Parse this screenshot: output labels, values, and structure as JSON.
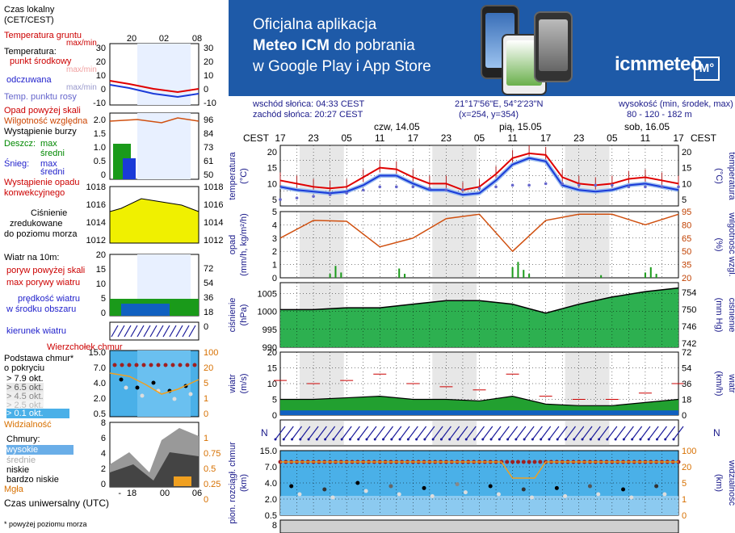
{
  "banner": {
    "line1": "Oficjalna aplikacja",
    "line2a": "Meteo ICM",
    "line2b": " do pobrania",
    "line3": "w Google Play i App Store",
    "brand": "icmmeteo",
    "brand_badge": "M°",
    "colors": {
      "bg": "#1e5aa8",
      "text": "#ffffff"
    }
  },
  "header": {
    "sunrise": "wschód słońca: 04:33 CEST",
    "sunset": "zachód słońca: 20:27 CEST",
    "coords": "21°17'56\"E, 54°2'23\"N",
    "grid": "(x=254,  y=354)",
    "height_label": "wysokość (min, środek, max)",
    "height_values": "80 - 120 - 182 m"
  },
  "legend": {
    "time_local": "Czas lokalny",
    "time_local2": "(CET/CEST)",
    "time_ticks": [
      "20",
      "02",
      "08"
    ],
    "temp_ground": "Temperatura gruntu",
    "temp_ground2": "max/min",
    "temp_title": "Temperatura:",
    "temp_mid": "punkt środkowy",
    "temp_maxmin": "max/min",
    "temp_feel": "odczuwana",
    "temp_feel2": "max/min",
    "temp_dew": "Temp. punktu rosy",
    "temp_axis": [
      "30",
      "20",
      "10",
      "0",
      "-10"
    ],
    "precip_over": "Opad powyżej skali",
    "humidity": "Wilgotność względna",
    "storm": "Wystąpienie burzy",
    "rain": "Deszcz:",
    "rain_max": "max",
    "rain_mid": "średni",
    "snow": "Śnieg:",
    "snow_max": "max",
    "snow_mid": "średni",
    "precip_occ": "Wystąpienie opadu",
    "precip_occ2": "konwekcyjnego",
    "precip_axis": [
      "2.0",
      "1.5",
      "1.0",
      "0.5",
      "0"
    ],
    "hum_axis": [
      "96",
      "84",
      "73",
      "61",
      "50"
    ],
    "pressure_title": "Ciśnienie",
    "pressure_2": "zredukowane",
    "pressure_3": "do poziomu morza",
    "pressure_axis": [
      "1018",
      "1016",
      "1014",
      "1012"
    ],
    "wind_title": "Wiatr na 10m:",
    "wind_gust_over": "poryw powyżej skali",
    "wind_gust_max": "max porywy wiatru",
    "wind_speed": "prędkość wiatru",
    "wind_speed2": "w środku obszaru",
    "wind_axis": [
      "20",
      "15",
      "10",
      "5",
      "0"
    ],
    "wind_axis_r": [
      "72",
      "54",
      "36",
      "18",
      "0"
    ],
    "wind_dir": "kierunek wiatru",
    "cloud_top": "Wierzchołek chmur",
    "cloud_base": "Podstawa chmur*",
    "cloud_base2": "o pokryciu",
    "okt": [
      "> 7.9 okt.",
      "> 6.5 okt.",
      "> 4.5 okt.",
      "> 2.5 okt.",
      "> 0.1 okt."
    ],
    "visibility": "Widzialność",
    "cloudbase_axis": [
      "15.0",
      "7.0",
      "4.0",
      "2.0",
      "0.5"
    ],
    "cloudbase_axis_r": [
      "100",
      "20",
      "5",
      "1",
      "0"
    ],
    "clouds": "Chmury:",
    "clouds_high": "wysokie",
    "clouds_mid": "średnie",
    "clouds_low": "niskie",
    "clouds_vlow": "bardzo niskie",
    "fog": "Mgła",
    "clouds_axis": [
      "8",
      "6",
      "4",
      "2",
      "0"
    ],
    "clouds_axis_r": [
      "1",
      "0.75",
      "0.5",
      "0.25",
      "0"
    ],
    "utc": "Czas uniwersalny (UTC)",
    "utc_ticks": [
      "18",
      "00",
      "06"
    ],
    "footnote": "* powyżej poziomu morza"
  },
  "main": {
    "cest": "CEST",
    "hour_ticks": [
      "17",
      "23",
      "05",
      "11",
      "17",
      "23",
      "05",
      "11",
      "17",
      "23",
      "05",
      "11",
      "17"
    ],
    "days": [
      "czw, 14.05",
      "pią, 15.05",
      "sob, 16.05"
    ],
    "temp_label": "temperatura",
    "temp_unit": "(°C)",
    "temp_axis": [
      "20",
      "15",
      "10",
      "5"
    ],
    "precip_label": "opad",
    "precip_unit": "(mm/h, kg/m²/h)",
    "precip_axis": [
      "5",
      "4",
      "3",
      "2",
      "1",
      "0"
    ],
    "hum_label": "wilgotność wzgl.",
    "hum_unit": "(%)",
    "hum_axis": [
      "95",
      "80",
      "65",
      "50",
      "35",
      "20"
    ],
    "pres_label": "ciśnienie",
    "pres_unit": "(hPa)",
    "pres_unit_r": "(mm Hg)",
    "pres_axis": [
      "1005",
      "1000",
      "995",
      "990"
    ],
    "pres_axis_r": [
      "754",
      "750",
      "746",
      "742"
    ],
    "wind_label": "wiatr",
    "wind_unit": "(m/s)",
    "wind_unit_r": "(km/h)",
    "wind_axis": [
      "20",
      "15",
      "10",
      "5",
      "0"
    ],
    "wind_axis_r": [
      "72",
      "54",
      "36",
      "18",
      "0"
    ],
    "cb_label": "pion. rozciągł. chmur",
    "cb_unit": "(km)",
    "vis_label": "widzialność",
    "vis_unit": "(km)",
    "cb_axis": [
      "15.0",
      "7.0",
      "4.0",
      "2.0",
      "0.5"
    ],
    "cb_axis_r": [
      "100",
      "20",
      "5",
      "1",
      "0"
    ],
    "bottom_tick": "8"
  },
  "chart_data": [
    {
      "type": "line",
      "title": "temperatura",
      "ylabel": "(°C)",
      "ylim": [
        3,
        22
      ],
      "x_hours_from_start": [
        0,
        3,
        6,
        9,
        12,
        15,
        18,
        21,
        24,
        27,
        30,
        33,
        36,
        39,
        42,
        45,
        48,
        51,
        54,
        57,
        60,
        63,
        66,
        69,
        72
      ],
      "series": [
        {
          "name": "max/min",
          "values": [
            11,
            10,
            9,
            8.5,
            9,
            12,
            15,
            14.5,
            12,
            10,
            10,
            8,
            9,
            13,
            18,
            19.5,
            19,
            12,
            10,
            9.5,
            10,
            11.5,
            12,
            11,
            10
          ]
        },
        {
          "name": "punkt środkowy",
          "values": [
            10.5,
            9.5,
            9,
            8,
            9,
            11,
            14,
            14,
            11.5,
            9.5,
            9.5,
            7.5,
            8.5,
            12,
            17,
            19,
            18,
            11,
            9.5,
            9,
            9.5,
            11,
            11.5,
            10.5,
            9.5
          ]
        },
        {
          "name": "odczuwana",
          "values": [
            9,
            8,
            7.5,
            7,
            7.5,
            9.5,
            12.5,
            12.5,
            10,
            8,
            8,
            6.5,
            7,
            11,
            16,
            18,
            17,
            9.5,
            8,
            7.5,
            8,
            9.5,
            10,
            9,
            8
          ]
        },
        {
          "name": "Temp. punktu rosy",
          "values": [
            5,
            5.5,
            6,
            6.5,
            7,
            8,
            9,
            9,
            9,
            8.5,
            8,
            8,
            8.5,
            9,
            9.5,
            9.5,
            10,
            10,
            9.5,
            9.5,
            9.5,
            9,
            9,
            9,
            9
          ]
        }
      ]
    },
    {
      "type": "line",
      "title": "wilgotność wzgl.",
      "ylabel": "(%)",
      "ylim": [
        20,
        95
      ],
      "x_hours_from_start": [
        0,
        6,
        12,
        18,
        24,
        30,
        36,
        42,
        48,
        54,
        60,
        66,
        72
      ],
      "series": [
        {
          "name": "Wilgotność względna",
          "values": [
            65,
            85,
            84,
            55,
            65,
            87,
            92,
            50,
            85,
            92,
            92,
            80,
            92
          ]
        }
      ]
    },
    {
      "type": "area",
      "title": "ciśnienie",
      "ylabel": "(hPa)",
      "ylim": [
        990,
        1008
      ],
      "x_hours_from_start": [
        0,
        6,
        12,
        18,
        24,
        30,
        36,
        42,
        48,
        54,
        60,
        66,
        72
      ],
      "series": [
        {
          "name": "Ciśnienie",
          "values": [
            1000.5,
            1000.5,
            1001,
            1001,
            1002,
            1003,
            1003,
            1002,
            999.5,
            1002,
            1004,
            1005.5,
            1006.5
          ]
        }
      ]
    },
    {
      "type": "area",
      "title": "wiatr",
      "ylabel": "(m/s)",
      "ylim": [
        0,
        20
      ],
      "x_hours_from_start": [
        0,
        6,
        12,
        18,
        24,
        30,
        36,
        42,
        48,
        54,
        60,
        66,
        72
      ],
      "series": [
        {
          "name": "prędkość wiatru",
          "values": [
            5,
            5,
            5.5,
            6,
            5,
            5,
            4.5,
            6,
            3.5,
            3,
            3,
            4,
            5
          ]
        },
        {
          "name": "max porywy wiatru",
          "values": [
            11,
            10,
            11,
            13,
            10,
            9,
            8,
            13,
            6,
            5,
            5,
            7,
            10
          ]
        }
      ]
    }
  ]
}
